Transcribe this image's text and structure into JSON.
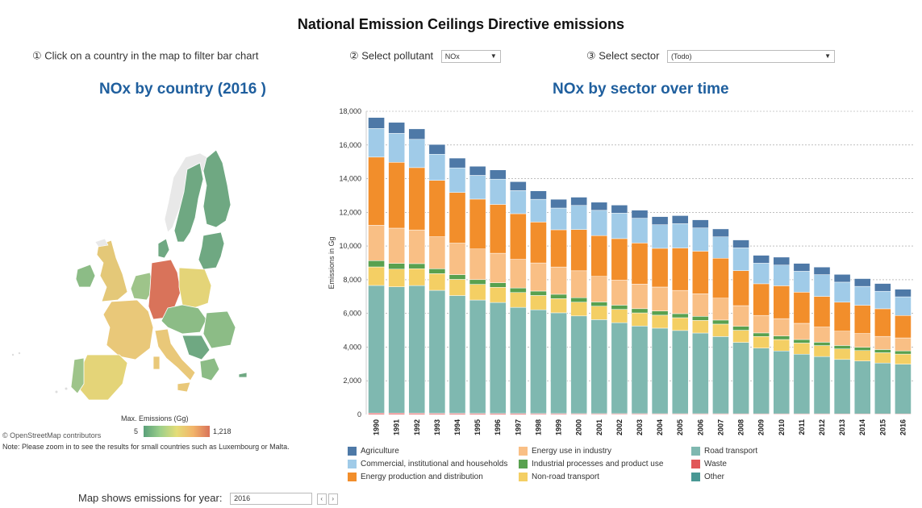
{
  "title": "National Emission Ceilings Directive emissions",
  "controls": {
    "map_hint": "① Click on a country in the map to filter bar chart",
    "pollutant_label": "② Select pollutant",
    "pollutant_value": "NOx",
    "sector_label": "③ Select sector",
    "sector_value": "(Todo)"
  },
  "map_panel": {
    "title": "NOx by country (2016 )",
    "legend_title": "Max. Emissions (Gg)",
    "legend_min": "5",
    "legend_max": "1,218",
    "attribution": "© OpenStreetMap contributors",
    "note": "Note: Please zoom in to see the results for small countries such as Luxembourg or Malta.",
    "year_label": "Map shows emissions for year:",
    "year_value": "2016",
    "prev_icon": "‹",
    "next_icon": "›"
  },
  "chart_panel": {
    "title": "NOx by sector over time"
  },
  "chart_data": {
    "type": "bar",
    "stacked": true,
    "ylabel": "Emissions in Gg",
    "ylim": [
      0,
      18000
    ],
    "yticks": [
      "0",
      "2,000",
      "4,000",
      "6,000",
      "8,000",
      "10,000",
      "12,000",
      "14,000",
      "16,000",
      "18,000"
    ],
    "grid": true,
    "categories": [
      "1990",
      "1991",
      "1992",
      "1993",
      "1994",
      "1995",
      "1996",
      "1997",
      "1998",
      "1999",
      "2000",
      "2001",
      "2002",
      "2003",
      "2004",
      "2005",
      "2006",
      "2007",
      "2008",
      "2009",
      "2010",
      "2011",
      "2012",
      "2013",
      "2014",
      "2015",
      "2016"
    ],
    "series": [
      {
        "name": "Waste",
        "color": "#e15759",
        "values": [
          80,
          80,
          75,
          70,
          70,
          65,
          60,
          60,
          55,
          55,
          50,
          50,
          50,
          50,
          45,
          45,
          45,
          45,
          40,
          40,
          40,
          40,
          40,
          35,
          35,
          35,
          35
        ]
      },
      {
        "name": "Road transport",
        "color": "#7fb8b0",
        "values": [
          7580,
          7500,
          7580,
          7300,
          6990,
          6730,
          6590,
          6300,
          6160,
          5980,
          5800,
          5580,
          5400,
          5200,
          5080,
          4940,
          4790,
          4580,
          4240,
          3900,
          3730,
          3540,
          3400,
          3230,
          3140,
          3020,
          2950
        ]
      },
      {
        "name": "Non-road transport",
        "color": "#f4cf64",
        "values": [
          1100,
          1050,
          1000,
          990,
          960,
          930,
          900,
          880,
          850,
          840,
          820,
          800,
          790,
          780,
          770,
          760,
          750,
          740,
          720,
          690,
          680,
          660,
          650,
          630,
          620,
          610,
          600
        ]
      },
      {
        "name": "Industrial processes and product use",
        "color": "#59a14f",
        "values": [
          370,
          340,
          300,
          290,
          280,
          280,
          270,
          270,
          260,
          260,
          260,
          250,
          250,
          250,
          250,
          240,
          240,
          240,
          230,
          210,
          210,
          210,
          200,
          200,
          190,
          190,
          190
        ]
      },
      {
        "name": "Energy use in industry",
        "color": "#f9bf85",
        "values": [
          2100,
          2090,
          2000,
          1900,
          1870,
          1820,
          1750,
          1700,
          1670,
          1620,
          1600,
          1520,
          1480,
          1460,
          1420,
          1380,
          1340,
          1300,
          1230,
          1040,
          1030,
          960,
          900,
          850,
          820,
          780,
          770
        ]
      },
      {
        "name": "Energy production and distribution",
        "color": "#f28e2b",
        "values": [
          4050,
          3910,
          3700,
          3350,
          3010,
          2960,
          2900,
          2710,
          2430,
          2210,
          2450,
          2420,
          2470,
          2440,
          2300,
          2520,
          2530,
          2370,
          2080,
          1880,
          1950,
          1850,
          1820,
          1720,
          1680,
          1640,
          1330
        ]
      },
      {
        "name": "Commercial, institutional and households",
        "color": "#a0cbe8",
        "values": [
          1700,
          1720,
          1680,
          1550,
          1460,
          1410,
          1500,
          1370,
          1350,
          1290,
          1430,
          1500,
          1510,
          1470,
          1400,
          1440,
          1380,
          1270,
          1350,
          1220,
          1230,
          1240,
          1290,
          1190,
          1120,
          1040,
          1110
        ]
      },
      {
        "name": "Agriculture",
        "color": "#4e79a7",
        "values": [
          650,
          650,
          620,
          580,
          580,
          540,
          550,
          530,
          500,
          520,
          490,
          480,
          480,
          480,
          480,
          480,
          480,
          470,
          470,
          470,
          470,
          470,
          450,
          460,
          460,
          460,
          450
        ]
      },
      {
        "name": "Other",
        "color": "#499894",
        "values": [
          0,
          0,
          0,
          0,
          0,
          0,
          0,
          0,
          0,
          0,
          0,
          0,
          0,
          0,
          0,
          0,
          0,
          0,
          0,
          0,
          0,
          0,
          0,
          0,
          0,
          0,
          0
        ]
      }
    ]
  },
  "legend": [
    {
      "name": "Agriculture",
      "color": "#4e79a7",
      "col": 0,
      "row": 0
    },
    {
      "name": "Commercial, institutional and households",
      "color": "#a0cbe8",
      "col": 0,
      "row": 1
    },
    {
      "name": "Energy production and distribution",
      "color": "#f28e2b",
      "col": 0,
      "row": 2
    },
    {
      "name": "Energy use in industry",
      "color": "#f9bf85",
      "col": 1,
      "row": 0
    },
    {
      "name": "Industrial processes and product use",
      "color": "#59a14f",
      "col": 1,
      "row": 1
    },
    {
      "name": "Non-road transport",
      "color": "#f4cf64",
      "col": 1,
      "row": 2
    },
    {
      "name": "Road transport",
      "color": "#7fb8b0",
      "col": 2,
      "row": 0
    },
    {
      "name": "Waste",
      "color": "#e15759",
      "col": 2,
      "row": 1
    },
    {
      "name": "Other",
      "color": "#499894",
      "col": 2,
      "row": 2
    }
  ],
  "map_colors": {
    "low": "#6fa882",
    "mid_low": "#9ec48a",
    "mid": "#e4d478",
    "high": "#e9b56a",
    "max": "#d9735a"
  }
}
